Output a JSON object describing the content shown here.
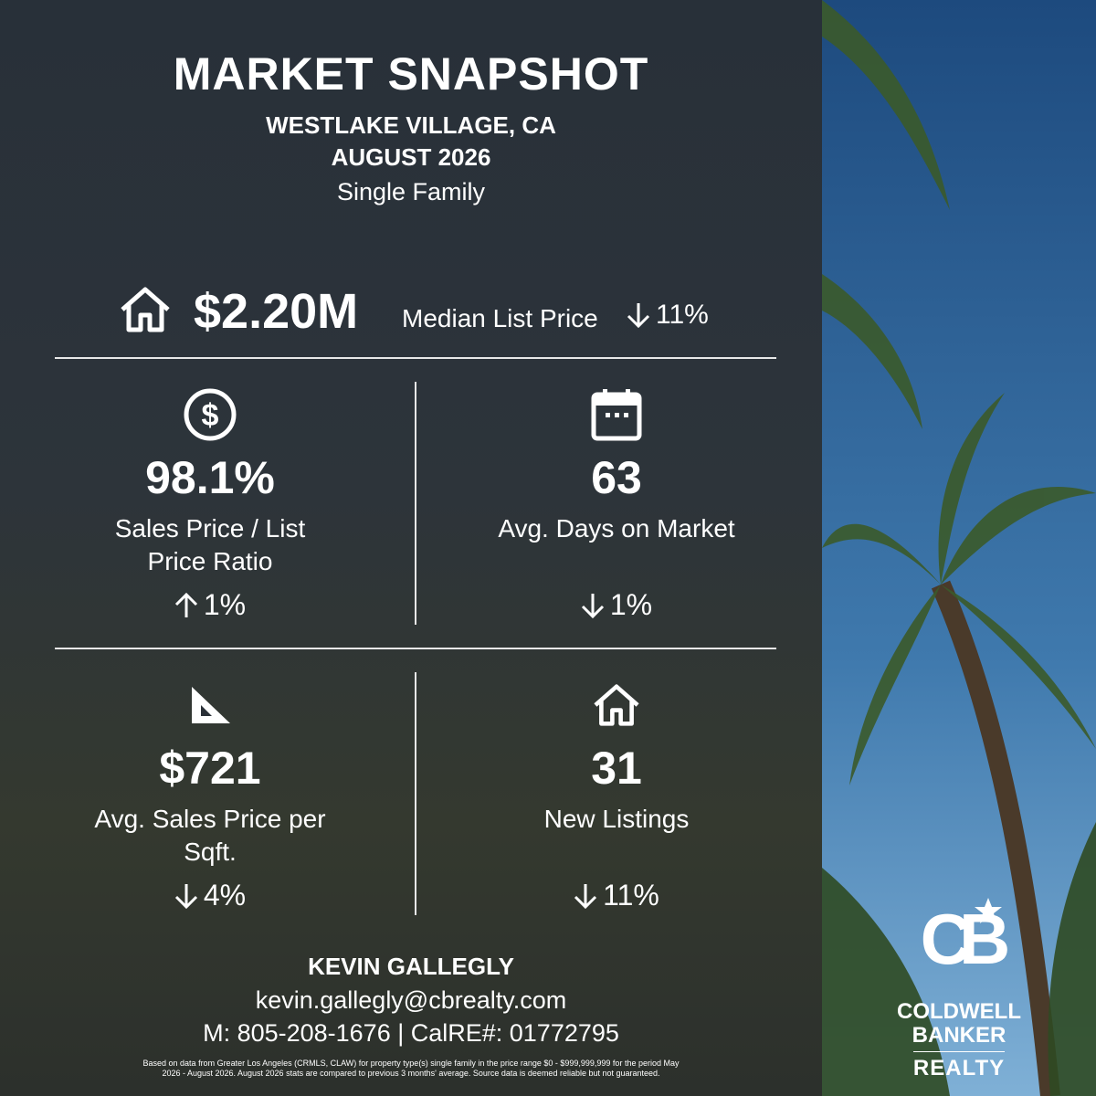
{
  "header": {
    "title": "MARKET SNAPSHOT",
    "location": "WESTLAKE VILLAGE, CA",
    "period": "AUGUST 2026",
    "property_type": "Single Family"
  },
  "headline": {
    "value": "$2.20M",
    "label": "Median List Price",
    "change": "11%",
    "direction": "down"
  },
  "metrics": [
    {
      "value": "98.1%",
      "label": "Sales Price / List Price Ratio",
      "change": "1%",
      "direction": "up"
    },
    {
      "value": "63",
      "label": "Avg. Days on Market",
      "change": "1%",
      "direction": "down"
    },
    {
      "value": "$721",
      "label": "Avg. Sales Price per Sqft.",
      "change": "4%",
      "direction": "down"
    },
    {
      "value": "31",
      "label": "New Listings",
      "change": "11%",
      "direction": "down"
    }
  ],
  "agent": {
    "name": "KEVIN GALLEGLY",
    "email": "kevin.gallegly@cbrealty.com",
    "phone": "M: 805-208-1676 | CalRE#: 01772795"
  },
  "disclaimer": "Based on data from Greater Los Angeles (CRMLS, CLAW) for property type(s) single family in the price range $0 - $999,999,999 for the period May 2026 - August 2026. August 2026 stats are compared to previous 3 months' average. Source data is deemed reliable but not guaranteed.",
  "logo": {
    "monogram": "CB",
    "line1": "COLDWELL",
    "line2": "BANKER",
    "line3": "REALTY"
  }
}
